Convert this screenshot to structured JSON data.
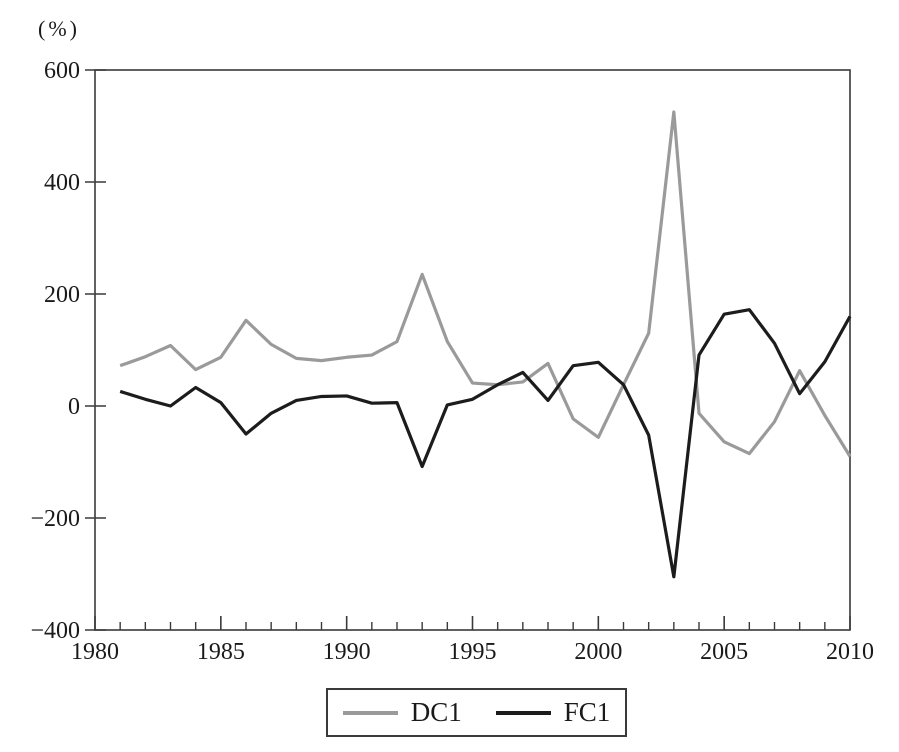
{
  "figure": {
    "percent_label": "(%)",
    "axis_color": "#3a3a3a",
    "text_color": "#1a1a1a",
    "background": "#ffffff"
  },
  "chart_data": {
    "type": "line",
    "title": "",
    "xlabel": "",
    "ylabel": "(%)",
    "grid": false,
    "legend_position": "bottom-center",
    "xlim": [
      1980,
      2010
    ],
    "ylim": [
      -400,
      600
    ],
    "yticks": [
      -400,
      -200,
      0,
      200,
      400,
      600
    ],
    "xticks_major": [
      1980,
      1985,
      1990,
      1995,
      2000,
      2005,
      2010
    ],
    "xticks_minor_step": 1,
    "x": [
      1981,
      1982,
      1983,
      1984,
      1985,
      1986,
      1987,
      1988,
      1989,
      1990,
      1991,
      1992,
      1993,
      1994,
      1995,
      1996,
      1997,
      1998,
      1999,
      2000,
      2001,
      2002,
      2003,
      2004,
      2005,
      2006,
      2007,
      2008,
      2009,
      2010
    ],
    "series": [
      {
        "name": "DC1",
        "color": "#9a9a9a",
        "values": [
          72,
          88,
          108,
          65,
          87,
          153,
          110,
          85,
          81,
          87,
          91,
          115,
          235,
          115,
          41,
          38,
          43,
          76,
          -23,
          -56,
          38,
          130,
          525,
          -13,
          -64,
          -85,
          -28,
          63,
          -17,
          -90
        ]
      },
      {
        "name": "FC1",
        "color": "#1c1c1c",
        "values": [
          26,
          12,
          0,
          33,
          6,
          -50,
          -13,
          10,
          17,
          18,
          5,
          6,
          -108,
          2,
          12,
          38,
          60,
          10,
          72,
          78,
          38,
          -52,
          -305,
          91,
          164,
          172,
          112,
          22,
          79,
          160
        ]
      }
    ]
  }
}
